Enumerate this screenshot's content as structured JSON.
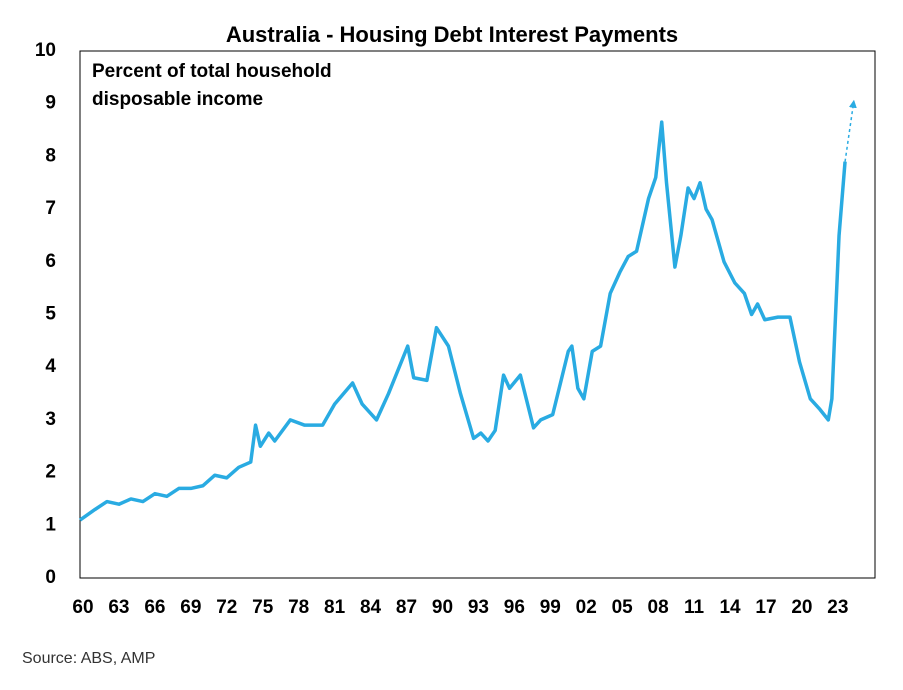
{
  "chart_data": {
    "type": "line",
    "title": "Australia - Housing Debt Interest Payments",
    "annotation": "Percent of total household disposable income",
    "source": "Source: ABS, AMP",
    "x": [
      1959.75,
      1961,
      1962,
      1963,
      1964,
      1965,
      1966,
      1967,
      1968,
      1969,
      1970,
      1971,
      1972,
      1973,
      1974,
      1974.4,
      1974.8,
      1975.5,
      1976,
      1977.3,
      1978.5,
      1980,
      1981,
      1982.5,
      1983.3,
      1984.5,
      1985.5,
      1987.1,
      1987.6,
      1988.7,
      1989.5,
      1990.5,
      1991.5,
      1992.6,
      1993.2,
      1993.8,
      1994.4,
      1995.1,
      1995.6,
      1996.5,
      1997.6,
      1998.2,
      1999.2,
      2000.5,
      2000.8,
      2001.3,
      2001.8,
      2002.5,
      2003.2,
      2004.0,
      2004.8,
      2005.5,
      2006.2,
      2007.2,
      2007.8,
      2008.3,
      2008.7,
      2009.4,
      2009.9,
      2010.5,
      2011.0,
      2011.5,
      2012.0,
      2012.5,
      2013.5,
      2014.4,
      2015.2,
      2015.8,
      2016.3,
      2016.9,
      2018.0,
      2019.0,
      2019.8,
      2020.7,
      2021.5,
      2022.2,
      2022.5,
      2023.1,
      2023.6,
      2024.3
    ],
    "series": [
      {
        "color": "#29abe2",
        "dashed": false,
        "values": [
          1.1,
          1.3,
          1.45,
          1.4,
          1.5,
          1.45,
          1.6,
          1.55,
          1.7,
          1.7,
          1.75,
          1.95,
          1.9,
          2.1,
          2.2,
          2.9,
          2.5,
          2.75,
          2.6,
          3.0,
          2.9,
          2.9,
          3.3,
          3.7,
          3.3,
          3.0,
          3.5,
          4.4,
          3.8,
          3.75,
          4.75,
          4.4,
          3.5,
          2.65,
          2.75,
          2.6,
          2.8,
          3.85,
          3.6,
          3.85,
          2.85,
          3.0,
          3.1,
          4.3,
          4.4,
          3.6,
          3.4,
          4.3,
          4.4,
          5.4,
          5.8,
          6.1,
          6.2,
          7.2,
          7.6,
          8.65,
          7.5,
          5.9,
          6.5,
          7.4,
          7.2,
          7.5,
          7.0,
          6.8,
          6.0,
          5.6,
          5.4,
          5.0,
          5.2,
          4.9,
          4.95,
          4.95,
          4.1,
          3.4,
          3.2,
          3.0,
          3.4,
          6.5,
          7.9,
          null
        ]
      },
      {
        "color": "#29abe2",
        "dashed": true,
        "values": [
          null,
          null,
          null,
          null,
          null,
          null,
          null,
          null,
          null,
          null,
          null,
          null,
          null,
          null,
          null,
          null,
          null,
          null,
          null,
          null,
          null,
          null,
          null,
          null,
          null,
          null,
          null,
          null,
          null,
          null,
          null,
          null,
          null,
          null,
          null,
          null,
          null,
          null,
          null,
          null,
          null,
          null,
          null,
          null,
          null,
          null,
          null,
          null,
          null,
          null,
          null,
          null,
          null,
          null,
          null,
          null,
          null,
          null,
          null,
          null,
          null,
          null,
          null,
          null,
          null,
          null,
          null,
          null,
          null,
          null,
          null,
          null,
          null,
          null,
          null,
          null,
          null,
          null,
          7.9,
          9.0
        ]
      }
    ],
    "xlim": [
      1959.75,
      2026.1
    ],
    "xticks": [
      {
        "value": 1960,
        "label": "60"
      },
      {
        "value": 1963,
        "label": "63"
      },
      {
        "value": 1966,
        "label": "66"
      },
      {
        "value": 1969,
        "label": "69"
      },
      {
        "value": 1972,
        "label": "72"
      },
      {
        "value": 1975,
        "label": "75"
      },
      {
        "value": 1978,
        "label": "78"
      },
      {
        "value": 1981,
        "label": "81"
      },
      {
        "value": 1984,
        "label": "84"
      },
      {
        "value": 1987,
        "label": "87"
      },
      {
        "value": 1990,
        "label": "90"
      },
      {
        "value": 1993,
        "label": "93"
      },
      {
        "value": 1996,
        "label": "96"
      },
      {
        "value": 1999,
        "label": "99"
      },
      {
        "value": 2002,
        "label": "02"
      },
      {
        "value": 2005,
        "label": "05"
      },
      {
        "value": 2008,
        "label": "08"
      },
      {
        "value": 2011,
        "label": "11"
      },
      {
        "value": 2014,
        "label": "14"
      },
      {
        "value": 2017,
        "label": "17"
      },
      {
        "value": 2020,
        "label": "20"
      },
      {
        "value": 2023,
        "label": "23"
      }
    ],
    "ylim": [
      0,
      10
    ],
    "yticks": [
      0,
      1,
      2,
      3,
      4,
      5,
      6,
      7,
      8,
      9,
      10
    ],
    "grid": false
  }
}
